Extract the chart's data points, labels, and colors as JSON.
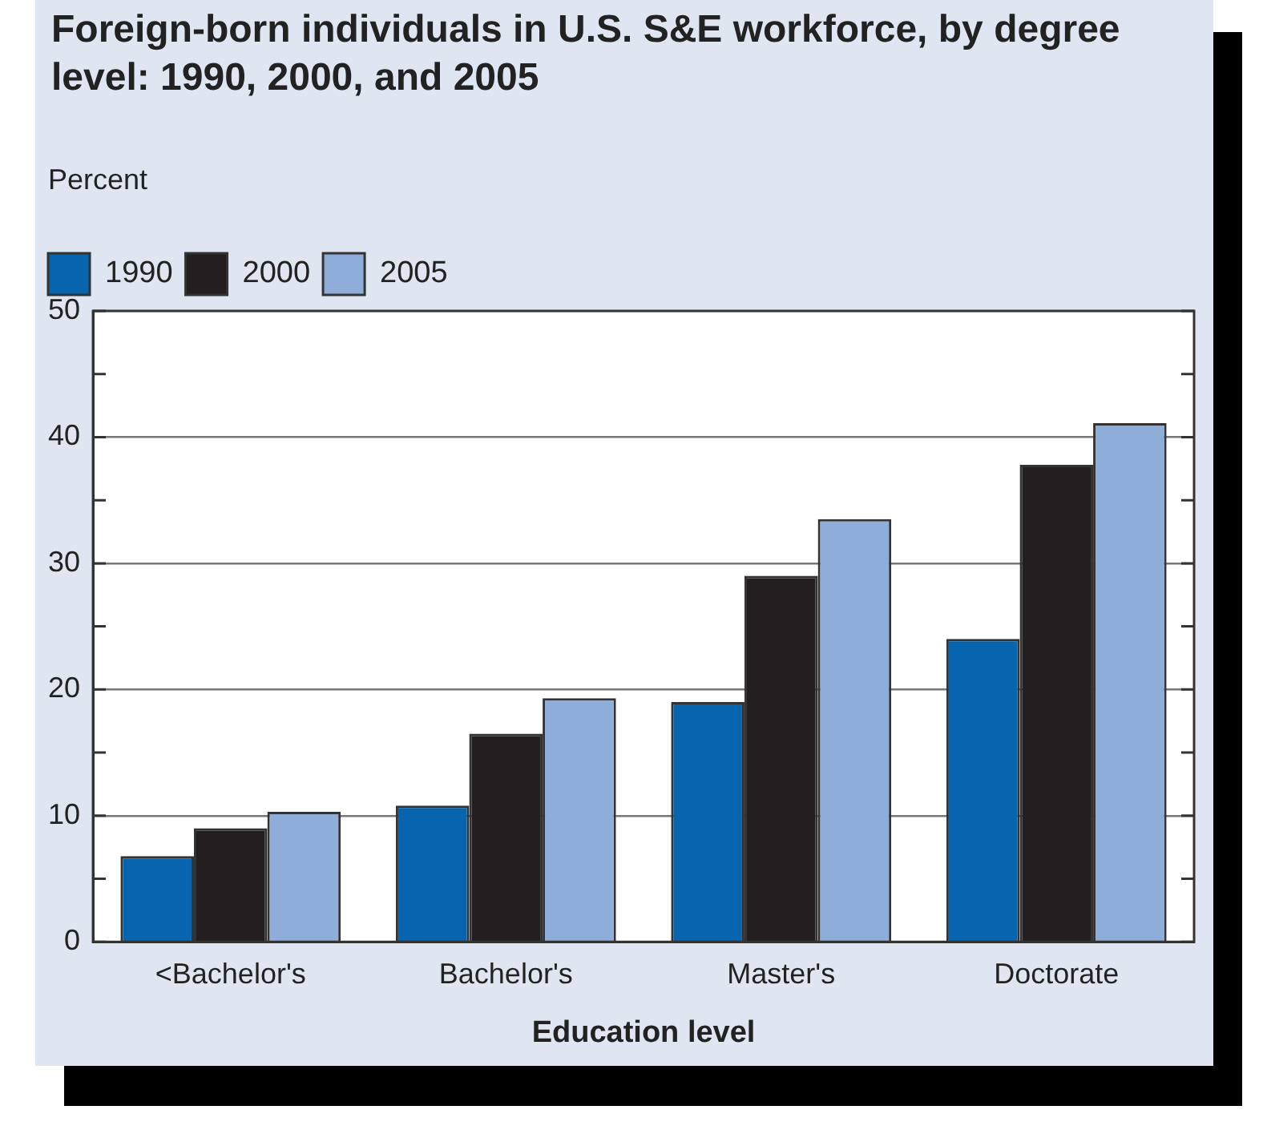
{
  "chart_data": {
    "type": "bar",
    "title": "Foreign-born individuals in U.S. S&E workforce, by degree level: 1990, 2000, and 2005",
    "ylabel": "Percent",
    "xlabel": "Education level",
    "categories": [
      "<Bachelor's",
      "Bachelor's",
      "Master's",
      "Doctorate"
    ],
    "series": [
      {
        "name": "1990",
        "color": "#0765b0",
        "values": [
          6.8,
          10.8,
          19.0,
          24.0
        ]
      },
      {
        "name": "2000",
        "color": "#231f20",
        "values": [
          9.0,
          16.5,
          29.0,
          37.8
        ]
      },
      {
        "name": "2005",
        "color": "#8fadd9",
        "values": [
          10.3,
          19.3,
          33.5,
          41.1
        ]
      }
    ],
    "ylim": [
      0,
      50
    ],
    "yticks": [
      0,
      {
        "value": 5,
        "label": null
      },
      10,
      {
        "value": 15,
        "label": null
      },
      20,
      {
        "value": 25,
        "label": null
      },
      30,
      {
        "value": 35,
        "label": null
      },
      40,
      {
        "value": 45,
        "label": null
      },
      50
    ],
    "grid": "y",
    "legend": "top left"
  }
}
